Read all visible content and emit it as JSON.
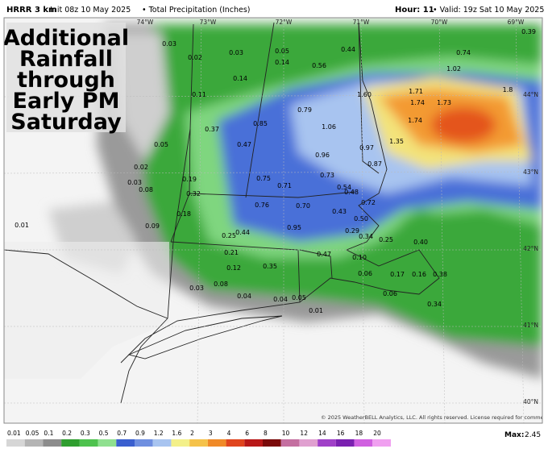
{
  "header": {
    "model": "HRRR 3 km",
    "init": "Init 08z 10 May 2025",
    "field": "• Total Precipitation (Inches)",
    "hour": "Hour: 11",
    "valid": "• Valid: 19z Sat 10 May 2025"
  },
  "title": {
    "lines": [
      "Additional",
      "Rainfall",
      "through",
      "Early PM",
      "Saturday"
    ]
  },
  "graticule": {
    "lon": [
      "74°W",
      "73°W",
      "72°W",
      "71°W",
      "70°W",
      "69°W"
    ],
    "lat": [
      "44°N",
      "43°N",
      "42°N",
      "41°N",
      "40°N"
    ]
  },
  "map_labels": [
    "0.03",
    "0.02",
    "0.03",
    "0.05",
    "0.14",
    "0.44",
    "0.74",
    "0.39",
    "1.02",
    "0.56",
    "0.14",
    "0.11",
    "1.71",
    "1.60",
    "1.74",
    "1.73",
    "1.8",
    "0.85",
    "0.79",
    "1.06",
    "1.74",
    "0.37",
    "0.47",
    "1.35",
    "0.97",
    "0.05",
    "0.96",
    "0.87",
    "0.02",
    "0.73",
    "0.75",
    "0.71",
    "0.54",
    "0.03",
    "0.19",
    "0.08",
    "0.32",
    "0.48",
    "0.72",
    "0.76",
    "0.70",
    "0.43",
    "0.18",
    "0.50",
    "0.95",
    "0.09",
    "0.01",
    "0.29",
    "0.34",
    "0.25",
    "0.44",
    "0.25",
    "0.40",
    "0.21",
    "0.47",
    "0.10",
    "0.12",
    "0.35",
    "0.06",
    "0.17",
    "0.16",
    "0.38",
    "0.08",
    "0.03",
    "0.04",
    "0.04",
    "0.05",
    "0.06",
    "0.34",
    "0.01"
  ],
  "legend": {
    "labels": [
      "0.01",
      "0.05",
      "0.1",
      "0.2",
      "0.3",
      "0.5",
      "0.7",
      "0.9",
      "1.2",
      "1.6",
      "2",
      "3",
      "4",
      "6",
      "8",
      "10",
      "12",
      "14",
      "16",
      "18",
      "20"
    ],
    "colors": [
      "#d6d6d6",
      "#b4b4b4",
      "#8c8c8c",
      "#2f9e2f",
      "#4ec24e",
      "#8fe08f",
      "#3a5fcf",
      "#6f8fe0",
      "#a8c4f0",
      "#f3f08a",
      "#f5c24a",
      "#f08a28",
      "#e0451e",
      "#b81818",
      "#7a0a0a",
      "#c46fa0",
      "#e0a0d0",
      "#a040c8",
      "#7a20b0",
      "#d060e0",
      "#f0a0f0"
    ],
    "max_label": "Max:",
    "max_value": "2.45"
  },
  "footer": "© 2025 WeatherBELL Analytics, LLC. All rights reserved. License required for commercial distribution."
}
